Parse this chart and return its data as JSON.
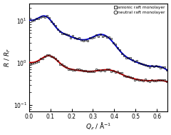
{
  "title": "",
  "xlabel": "$Q_z$ / Å$^{-1}$",
  "ylabel": "$R$ / $R_F$",
  "xlim": [
    0,
    0.65
  ],
  "background_color": "#ffffff",
  "anionic_color": "#0000cc",
  "neutral_color": "#cc0000",
  "data_color": "#111111",
  "legend_labels": [
    "anionic raft monolayer",
    "neutral raft monolayer"
  ],
  "legend_markers": [
    "s",
    "o"
  ],
  "ylim": [
    0.07,
    25.0
  ],
  "figsize": [
    2.4,
    1.89
  ],
  "dpi": 100
}
